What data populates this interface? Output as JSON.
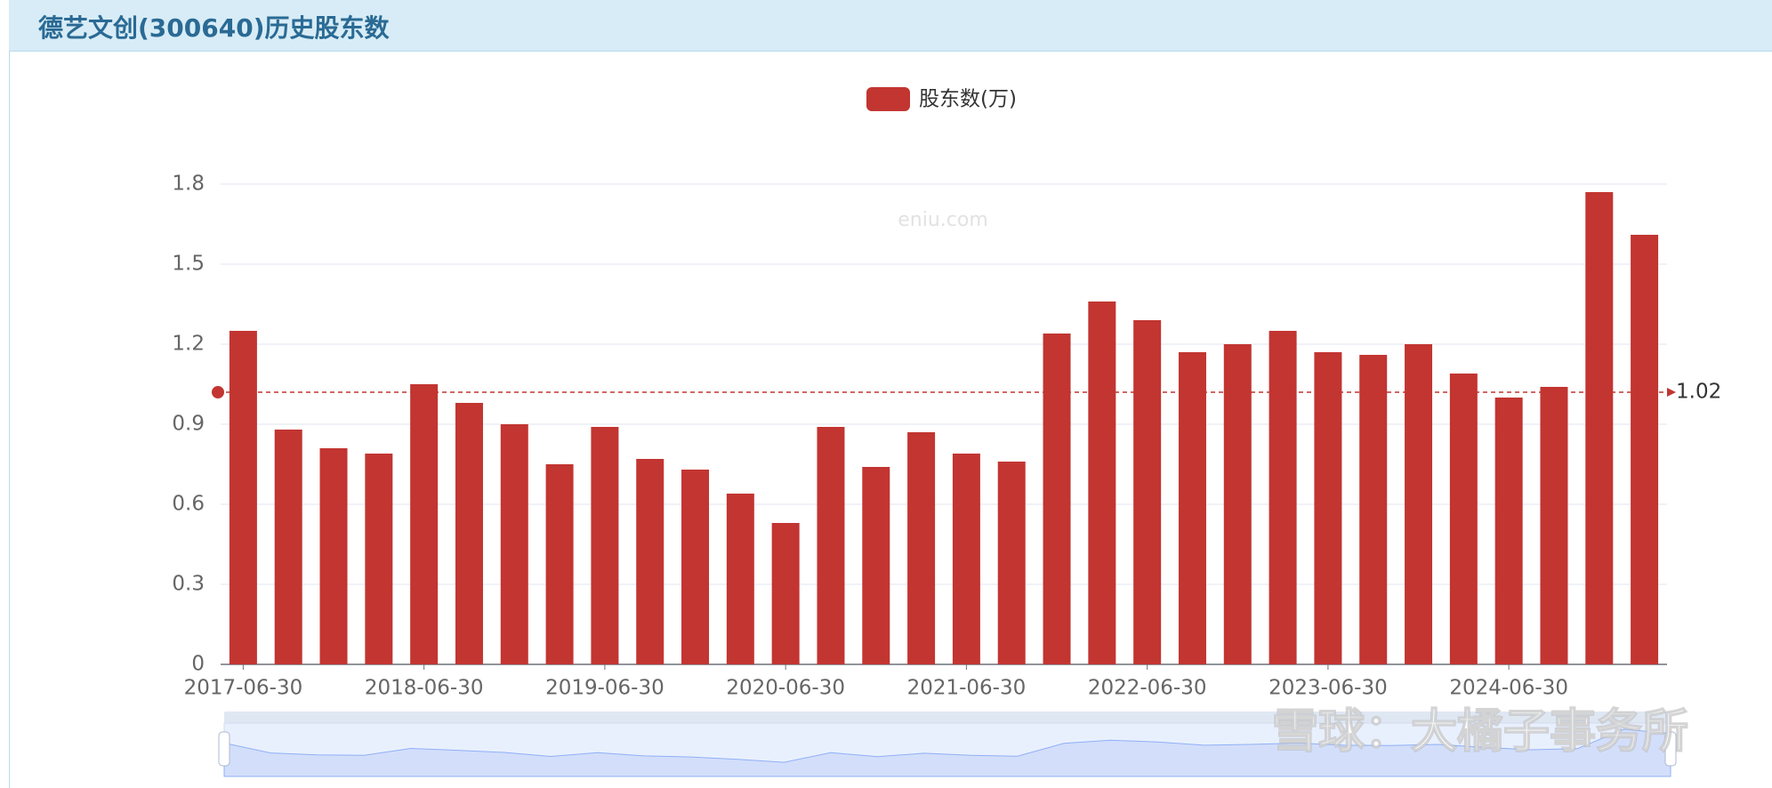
{
  "header": {
    "title": "德艺文创(300640)历史股东数"
  },
  "chart_data": {
    "type": "bar",
    "categories": [
      "2017-06-30",
      null,
      null,
      null,
      "2018-06-30",
      null,
      null,
      null,
      "2019-06-30",
      null,
      null,
      null,
      "2020-06-30",
      null,
      null,
      null,
      "2021-06-30",
      null,
      null,
      null,
      "2022-06-30",
      null,
      null,
      null,
      "2023-06-30",
      null,
      null,
      null,
      "2024-06-30",
      null,
      null,
      null
    ],
    "series": [
      {
        "name": "股东数(万)",
        "color": "#c23531",
        "values": [
          1.25,
          0.88,
          0.81,
          0.79,
          1.05,
          0.98,
          0.9,
          0.75,
          0.89,
          0.77,
          0.73,
          0.64,
          0.53,
          0.89,
          0.74,
          0.87,
          0.79,
          0.76,
          1.24,
          1.36,
          1.29,
          1.17,
          1.2,
          1.25,
          1.17,
          1.16,
          1.2,
          1.09,
          1.0,
          1.04,
          1.77,
          1.61
        ]
      }
    ],
    "ylim": [
      0,
      1.8
    ],
    "yticks": [
      0,
      0.3,
      0.6,
      0.9,
      1.2,
      1.5,
      1.8
    ],
    "grid": true,
    "average_line": 1.02,
    "watermark": "eniu.com"
  },
  "footer_watermark": "雪球：大橘子事务所"
}
